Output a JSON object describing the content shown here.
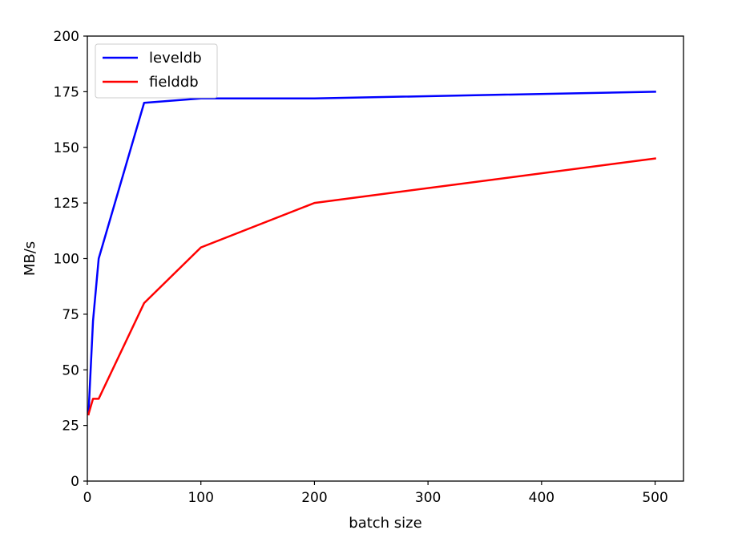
{
  "chart_data": {
    "type": "line",
    "title": "",
    "xlabel": "batch size",
    "ylabel": "MB/s",
    "xlim": [
      0,
      525
    ],
    "ylim": [
      0,
      200
    ],
    "xticks": [
      0,
      100,
      200,
      300,
      400,
      500
    ],
    "yticks": [
      0,
      25,
      50,
      75,
      100,
      125,
      150,
      175,
      200
    ],
    "grid": false,
    "legend_position": "top-left",
    "series": [
      {
        "name": "leveldb",
        "color": "#0000ff",
        "x": [
          1,
          5,
          10,
          50,
          100,
          200,
          500
        ],
        "y": [
          30,
          72,
          100,
          170,
          172,
          172,
          175
        ]
      },
      {
        "name": "fielddb",
        "color": "#ff0000",
        "x": [
          1,
          5,
          10,
          50,
          100,
          200,
          500
        ],
        "y": [
          30,
          37,
          37,
          80,
          105,
          125,
          145
        ]
      }
    ]
  }
}
